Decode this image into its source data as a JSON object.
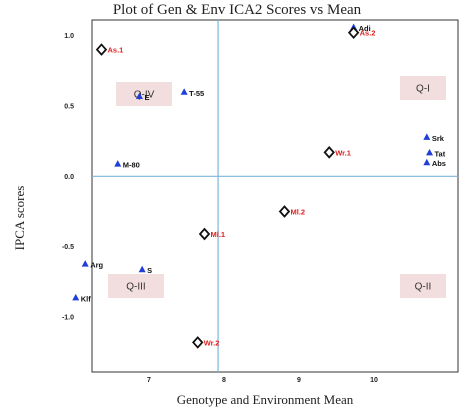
{
  "chart_data": {
    "type": "scatter",
    "title": "Plot of Gen & Env ICA2 Scores vs Mean",
    "xlabel": "Genotype and Environment Mean",
    "ylabel": "IPCA scores",
    "xlim": [
      7.35,
      10.05
    ],
    "ylim": [
      -1.39,
      1.11
    ],
    "x_ticks": [
      {
        "v": 8,
        "label": "8"
      },
      {
        "v": 9,
        "label": "9"
      },
      {
        "v": 10,
        "label": "10"
      }
    ],
    "x_tick_label_values": [
      7.0,
      8.0,
      9.0,
      10.0
    ],
    "x_tick_labels": [
      "7",
      "8",
      "9",
      "10"
    ],
    "y_tick_values": [
      1.0,
      0.5,
      0.0,
      -0.5,
      -1.0
    ],
    "y_tick_labels": [
      "1.0",
      "0.5",
      "0.0",
      "-0.5",
      "-1.0"
    ],
    "reference_lines": {
      "x": 8.28,
      "y": 0.0
    },
    "colors": {
      "genotype": "#1f3fd8",
      "environment": "#e02020",
      "environment_marker": "#111111",
      "reference_line": "#7eb6dd",
      "quadrant_box": "#f2dede"
    },
    "series": [
      {
        "name": "Genotypes",
        "marker": "triangle",
        "points": [
          {
            "label": "Adi",
            "x": 9.28,
            "y": 1.06
          },
          {
            "label": "T-55",
            "x": 8.03,
            "y": 0.6
          },
          {
            "label": "E",
            "x": 7.7,
            "y": 0.57
          },
          {
            "label": "M-80",
            "x": 7.54,
            "y": 0.09
          },
          {
            "label": "Srk",
            "x": 9.82,
            "y": 0.28
          },
          {
            "label": "Tat",
            "x": 9.84,
            "y": 0.17
          },
          {
            "label": "Abs",
            "x": 9.82,
            "y": 0.1
          },
          {
            "label": "Arg",
            "x": 7.3,
            "y": -0.62
          },
          {
            "label": "S",
            "x": 7.72,
            "y": -0.66
          },
          {
            "label": "Klf",
            "x": 7.23,
            "y": -0.86
          }
        ]
      },
      {
        "name": "Environments",
        "marker": "diamond",
        "points": [
          {
            "label": "As.1",
            "x": 7.42,
            "y": 0.9
          },
          {
            "label": "As.2",
            "x": 9.28,
            "y": 1.02
          },
          {
            "label": "Wr.1",
            "x": 9.1,
            "y": 0.17
          },
          {
            "label": "Ml.2",
            "x": 8.77,
            "y": -0.25
          },
          {
            "label": "Ml.1",
            "x": 8.18,
            "y": -0.41
          },
          {
            "label": "Wr.2",
            "x": 8.13,
            "y": -1.18
          }
        ]
      }
    ],
    "quadrants": [
      "Q-I",
      "Q-II",
      "Q-III",
      "Q-IV"
    ]
  }
}
